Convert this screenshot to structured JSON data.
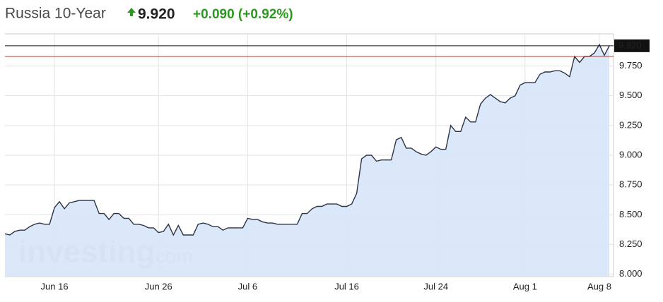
{
  "header": {
    "title": "Russia 10-Year",
    "last": "9.920",
    "change": "+0.090 (+0.92%)"
  },
  "chart_data": {
    "type": "area",
    "watermark": "investing",
    "watermark_suffix": ".com",
    "categories": [
      null,
      null,
      null,
      null,
      null,
      null,
      null,
      null,
      null,
      null,
      "Jun 16",
      null,
      null,
      null,
      null,
      null,
      null,
      null,
      null,
      null,
      null,
      null,
      null,
      null,
      null,
      null,
      null,
      null,
      null,
      null,
      null,
      "Jun 26",
      null,
      null,
      null,
      null,
      null,
      null,
      null,
      null,
      null,
      null,
      null,
      null,
      null,
      null,
      null,
      null,
      null,
      "Jul 6",
      null,
      null,
      null,
      null,
      null,
      null,
      null,
      null,
      null,
      null,
      null,
      null,
      null,
      null,
      null,
      null,
      null,
      null,
      null,
      "Jul 16",
      null,
      null,
      null,
      null,
      null,
      null,
      null,
      null,
      null,
      null,
      null,
      null,
      null,
      null,
      null,
      null,
      null,
      "Jul 24",
      null,
      null,
      null,
      null,
      null,
      null,
      null,
      null,
      null,
      null,
      null,
      null,
      null,
      null,
      null,
      null,
      null,
      "Aug 1",
      null,
      null,
      null,
      null,
      null,
      null,
      null,
      null,
      null,
      null,
      null,
      null,
      null,
      null,
      "Aug 8",
      null,
      null
    ],
    "values": [
      8.34,
      8.33,
      8.36,
      8.37,
      8.37,
      8.4,
      8.42,
      8.43,
      8.42,
      8.42,
      8.56,
      8.61,
      8.55,
      8.6,
      8.61,
      8.62,
      8.62,
      8.62,
      8.62,
      8.51,
      8.51,
      8.46,
      8.51,
      8.51,
      8.47,
      8.47,
      8.42,
      8.42,
      8.41,
      8.39,
      8.39,
      8.35,
      8.36,
      8.42,
      8.33,
      8.41,
      8.33,
      8.33,
      8.33,
      8.42,
      8.43,
      8.42,
      8.4,
      8.4,
      8.37,
      8.39,
      8.39,
      8.39,
      8.39,
      8.47,
      8.46,
      8.46,
      8.44,
      8.43,
      8.43,
      8.42,
      8.42,
      8.42,
      8.42,
      8.42,
      8.51,
      8.51,
      8.55,
      8.57,
      8.57,
      8.59,
      8.59,
      8.59,
      8.57,
      8.57,
      8.59,
      8.68,
      8.97,
      9.0,
      9.0,
      8.95,
      8.96,
      8.96,
      8.96,
      9.13,
      9.15,
      9.06,
      9.06,
      9.03,
      9.01,
      9.0,
      9.03,
      9.07,
      9.05,
      9.05,
      9.25,
      9.2,
      9.2,
      9.32,
      9.28,
      9.28,
      9.43,
      9.48,
      9.51,
      9.48,
      9.45,
      9.44,
      9.48,
      9.5,
      9.59,
      9.61,
      9.61,
      9.61,
      9.68,
      9.7,
      9.7,
      9.71,
      9.71,
      9.69,
      9.66,
      9.83,
      9.78,
      9.83,
      9.83,
      9.86,
      9.93,
      9.84,
      9.92
    ],
    "color": "#2b3445",
    "fill": "#d7e6fa",
    "prev_close": 9.83,
    "prev_close_color": "#c0392b",
    "ylim": [
      7.98,
      10.02
    ],
    "yticks": [
      {
        "value": 8.0,
        "label": "8.000"
      },
      {
        "value": 8.25,
        "label": "8.250"
      },
      {
        "value": 8.5,
        "label": "8.500"
      },
      {
        "value": 8.75,
        "label": "8.750"
      },
      {
        "value": 9.0,
        "label": "9.000"
      },
      {
        "value": 9.25,
        "label": "9.250"
      },
      {
        "value": 9.5,
        "label": "9.500"
      },
      {
        "value": 9.75,
        "label": "9.750"
      }
    ],
    "grid": true
  }
}
